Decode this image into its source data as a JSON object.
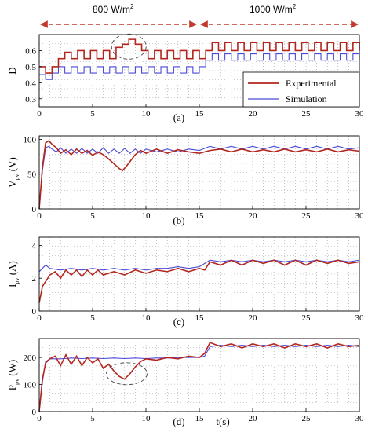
{
  "chart_data": [
    {
      "id": "a",
      "type": "line",
      "panel_label": "(a)",
      "ylabel": "D",
      "xlim": [
        0,
        30
      ],
      "ylim": [
        0.25,
        0.7
      ],
      "xticks": [
        "0",
        "5",
        "10",
        "15",
        "20",
        "25",
        "30"
      ],
      "yticks": [
        "0.3",
        "0.4",
        "0.5",
        "0.6"
      ],
      "legend": [
        "Experimental",
        "Simulation"
      ],
      "legend_position": "bottom-right",
      "annotations": {
        "irradiance_1": "800 W/m",
        "irradiance_2": "1000 W/m",
        "superscript": "2",
        "sup2": "2"
      },
      "series": [
        {
          "name": "Experimental",
          "color": "#b3261e",
          "x": [
            0,
            0.6,
            1.2,
            1.8,
            2.4,
            3.0,
            3.6,
            4.2,
            4.8,
            5.4,
            6.0,
            6.6,
            7.2,
            7.8,
            8.4,
            9.0,
            9.6,
            10.2,
            10.8,
            11.4,
            12.0,
            12.6,
            13.2,
            13.8,
            14.4,
            15.0,
            15.6,
            16.2,
            16.8,
            17.4,
            18.0,
            18.6,
            19.2,
            19.8,
            20.4,
            21.0,
            21.6,
            22.2,
            22.8,
            23.4,
            24.0,
            24.6,
            25.2,
            25.8,
            26.4,
            27.0,
            27.6,
            28.2,
            28.8,
            29.4,
            30
          ],
          "y": [
            0.5,
            0.46,
            0.5,
            0.55,
            0.59,
            0.55,
            0.6,
            0.55,
            0.6,
            0.55,
            0.6,
            0.55,
            0.62,
            0.64,
            0.67,
            0.64,
            0.6,
            0.55,
            0.6,
            0.55,
            0.6,
            0.55,
            0.6,
            0.55,
            0.6,
            0.55,
            0.6,
            0.65,
            0.6,
            0.65,
            0.6,
            0.65,
            0.6,
            0.65,
            0.6,
            0.65,
            0.6,
            0.65,
            0.6,
            0.65,
            0.6,
            0.65,
            0.6,
            0.65,
            0.6,
            0.65,
            0.6,
            0.65,
            0.6,
            0.65,
            0.6
          ]
        },
        {
          "name": "Simulation",
          "color": "#4a4ad8",
          "x": [
            0,
            0.6,
            1.2,
            1.8,
            2.4,
            3.0,
            3.6,
            4.2,
            4.8,
            5.4,
            6.0,
            6.6,
            7.2,
            7.8,
            8.4,
            9.0,
            9.6,
            10.2,
            10.8,
            11.4,
            12.0,
            12.6,
            13.2,
            13.8,
            14.4,
            15.0,
            15.6,
            16.2,
            16.8,
            17.4,
            18.0,
            18.6,
            19.2,
            19.8,
            20.4,
            21.0,
            21.6,
            22.2,
            22.8,
            23.4,
            24.0,
            24.6,
            25.2,
            25.8,
            26.4,
            27.0,
            27.6,
            28.2,
            28.8,
            29.4,
            30
          ],
          "y": [
            0.45,
            0.42,
            0.46,
            0.5,
            0.46,
            0.5,
            0.46,
            0.5,
            0.46,
            0.5,
            0.46,
            0.5,
            0.46,
            0.5,
            0.46,
            0.5,
            0.46,
            0.5,
            0.46,
            0.5,
            0.46,
            0.5,
            0.46,
            0.5,
            0.46,
            0.5,
            0.54,
            0.58,
            0.54,
            0.58,
            0.54,
            0.58,
            0.54,
            0.58,
            0.54,
            0.58,
            0.54,
            0.58,
            0.54,
            0.58,
            0.54,
            0.58,
            0.54,
            0.58,
            0.54,
            0.58,
            0.54,
            0.58,
            0.54,
            0.58,
            0.54
          ]
        }
      ]
    },
    {
      "id": "b",
      "type": "line",
      "panel_label": "(b)",
      "ylabel": "V",
      "ylabel_sub": "pv",
      "ylabel_unit": "(V)",
      "xlim": [
        0,
        30
      ],
      "ylim": [
        0,
        105
      ],
      "xticks": [
        "0",
        "5",
        "10",
        "15",
        "20",
        "25",
        "30"
      ],
      "yticks": [
        "0",
        "50",
        "100"
      ],
      "series": [
        {
          "name": "Experimental",
          "color": "#b3261e",
          "x": [
            0,
            0.3,
            0.6,
            0.9,
            1.2,
            1.6,
            2.0,
            2.5,
            3.0,
            3.5,
            4.0,
            4.5,
            5.0,
            5.5,
            6.0,
            6.5,
            7.0,
            7.5,
            7.8,
            8.2,
            8.6,
            9.0,
            9.5,
            10,
            11,
            12,
            13,
            14,
            15,
            16,
            17,
            18,
            19,
            20,
            21,
            22,
            23,
            24,
            25,
            26,
            27,
            28,
            29,
            30
          ],
          "y": [
            0,
            60,
            95,
            98,
            93,
            88,
            80,
            85,
            78,
            86,
            80,
            84,
            77,
            82,
            78,
            72,
            65,
            58,
            55,
            62,
            70,
            78,
            84,
            80,
            86,
            80,
            85,
            82,
            80,
            84,
            86,
            82,
            86,
            82,
            85,
            82,
            86,
            82,
            85,
            82,
            86,
            82,
            85,
            83
          ]
        },
        {
          "name": "Simulation",
          "color": "#4a4ad8",
          "x": [
            0,
            0.3,
            0.6,
            0.9,
            1.2,
            1.6,
            2.0,
            2.5,
            3.0,
            3.5,
            4.0,
            4.5,
            5.0,
            5.5,
            6.0,
            6.5,
            7.0,
            7.5,
            8.0,
            8.5,
            9.0,
            9.5,
            10,
            11,
            12,
            13,
            14,
            15,
            16,
            17,
            18,
            19,
            20,
            21,
            22,
            23,
            24,
            25,
            26,
            27,
            28,
            29,
            30
          ],
          "y": [
            0,
            55,
            88,
            90,
            86,
            82,
            88,
            80,
            86,
            80,
            87,
            80,
            86,
            80,
            88,
            80,
            86,
            80,
            87,
            80,
            86,
            80,
            86,
            82,
            86,
            82,
            86,
            84,
            90,
            86,
            90,
            86,
            90,
            86,
            90,
            86,
            90,
            86,
            90,
            86,
            90,
            86,
            88
          ]
        }
      ]
    },
    {
      "id": "c",
      "type": "line",
      "panel_label": "(c)",
      "ylabel": "I",
      "ylabel_sub": "pv",
      "ylabel_unit": "(A)",
      "xlim": [
        0,
        30
      ],
      "ylim": [
        0,
        4.5
      ],
      "xticks": [
        "0",
        "5",
        "10",
        "15",
        "20",
        "25",
        "30"
      ],
      "yticks": [
        "0",
        "2",
        "4"
      ],
      "series": [
        {
          "name": "Experimental",
          "color": "#b3261e",
          "x": [
            0,
            0.3,
            0.6,
            1.0,
            1.5,
            2.0,
            2.5,
            3.0,
            3.5,
            4.0,
            4.5,
            5.0,
            5.5,
            6.0,
            7.0,
            8.0,
            9.0,
            10,
            11,
            12,
            13,
            14,
            15,
            15.5,
            16,
            17,
            18,
            19,
            20,
            21,
            22,
            23,
            24,
            25,
            26,
            27,
            28,
            29,
            30
          ],
          "y": [
            0.5,
            1.5,
            1.8,
            2.2,
            2.4,
            2.0,
            2.5,
            2.2,
            2.5,
            2.1,
            2.5,
            2.2,
            2.5,
            2.2,
            2.4,
            2.2,
            2.5,
            2.3,
            2.5,
            2.4,
            2.6,
            2.4,
            2.6,
            2.5,
            3.0,
            2.8,
            3.1,
            2.8,
            3.1,
            2.9,
            3.1,
            2.8,
            3.1,
            2.8,
            3.1,
            2.9,
            3.1,
            2.9,
            3.0
          ]
        },
        {
          "name": "Simulation",
          "color": "#4a4ad8",
          "x": [
            0,
            0.3,
            0.6,
            1.0,
            2,
            3,
            4,
            5,
            6,
            7,
            8,
            9,
            10,
            11,
            12,
            13,
            14,
            15,
            16,
            17,
            18,
            19,
            20,
            21,
            22,
            23,
            24,
            25,
            26,
            27,
            28,
            29,
            30
          ],
          "y": [
            2.4,
            2.6,
            2.8,
            2.6,
            2.5,
            2.6,
            2.5,
            2.6,
            2.5,
            2.6,
            2.5,
            2.6,
            2.5,
            2.6,
            2.6,
            2.7,
            2.6,
            2.7,
            3.1,
            3.0,
            3.1,
            3.0,
            3.1,
            3.0,
            3.1,
            3.0,
            3.1,
            3.0,
            3.1,
            3.0,
            3.1,
            3.0,
            3.1
          ]
        }
      ]
    },
    {
      "id": "d",
      "type": "line",
      "panel_label": "(d)",
      "ylabel": "P",
      "ylabel_sub": "pv",
      "ylabel_unit": "(W)",
      "xlabel": "t(s)",
      "xlim": [
        0,
        30
      ],
      "ylim": [
        0,
        270
      ],
      "xticks": [
        "0",
        "5",
        "10",
        "15",
        "20",
        "25",
        "30"
      ],
      "yticks": [
        "0",
        "100",
        "200"
      ],
      "series": [
        {
          "name": "Experimental",
          "color": "#b3261e",
          "x": [
            0,
            0.3,
            0.6,
            1.0,
            1.5,
            2.0,
            2.5,
            3.0,
            3.5,
            4.0,
            4.5,
            5.0,
            5.5,
            6.0,
            6.5,
            7.0,
            7.5,
            8.0,
            8.5,
            9.0,
            9.5,
            10,
            11,
            12,
            13,
            14,
            15,
            15.5,
            16,
            17,
            18,
            19,
            20,
            21,
            22,
            23,
            24,
            25,
            26,
            27,
            28,
            29,
            30
          ],
          "y": [
            0,
            120,
            180,
            195,
            205,
            170,
            210,
            175,
            205,
            170,
            200,
            180,
            195,
            160,
            175,
            150,
            130,
            120,
            140,
            165,
            185,
            195,
            190,
            200,
            195,
            205,
            200,
            215,
            255,
            240,
            250,
            235,
            250,
            240,
            250,
            235,
            250,
            240,
            250,
            235,
            250,
            240,
            245
          ]
        },
        {
          "name": "Simulation",
          "color": "#4a4ad8",
          "x": [
            0,
            0.3,
            0.6,
            1.0,
            2,
            3,
            4,
            5,
            6,
            7,
            8,
            9,
            10,
            11,
            12,
            13,
            14,
            15,
            15.5,
            16,
            17,
            18,
            19,
            20,
            21,
            22,
            23,
            24,
            25,
            26,
            27,
            28,
            29,
            30
          ],
          "y": [
            0,
            110,
            185,
            195,
            195,
            198,
            196,
            198,
            196,
            198,
            196,
            198,
            196,
            198,
            198,
            200,
            200,
            200,
            205,
            240,
            245,
            240,
            245,
            240,
            245,
            240,
            245,
            240,
            245,
            240,
            245,
            240,
            245,
            240
          ]
        }
      ]
    }
  ]
}
